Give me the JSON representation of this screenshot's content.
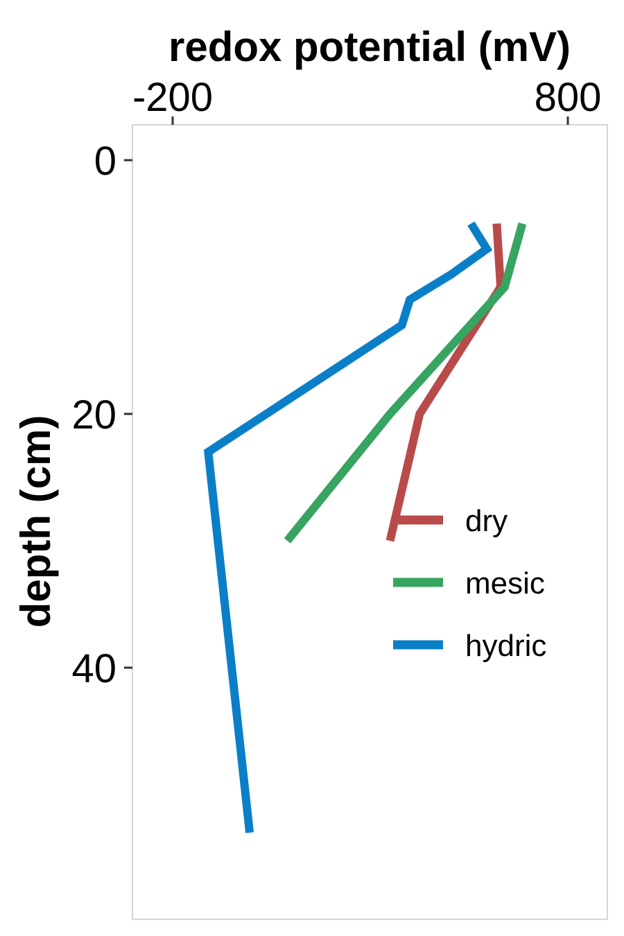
{
  "chart_data": {
    "type": "line",
    "xlabel": "redox potential (mV)",
    "ylabel": "depth (cm)",
    "x_axis_position": "top",
    "y_axis_reversed": true,
    "xlim": [
      -300,
      900
    ],
    "ylim": [
      -3,
      60
    ],
    "x_ticks": [
      -200,
      800
    ],
    "x_tick_labels": [
      "-200",
      "800"
    ],
    "y_ticks": [
      0,
      20,
      40
    ],
    "y_tick_labels": [
      "0",
      "20",
      "40"
    ],
    "grid": false,
    "legend_position": "center-right",
    "series": [
      {
        "name": "dry",
        "color": "#b94a4a",
        "points": [
          [
            620,
            5
          ],
          [
            630,
            10
          ],
          [
            425,
            20
          ],
          [
            350,
            30
          ]
        ]
      },
      {
        "name": "mesic",
        "color": "#37a461",
        "points": [
          [
            685,
            5
          ],
          [
            640,
            10
          ],
          [
            350,
            20
          ],
          [
            90,
            30
          ]
        ]
      },
      {
        "name": "hydric",
        "color": "#0a7fc8",
        "points": [
          [
            555,
            5
          ],
          [
            595,
            7
          ],
          [
            505,
            9
          ],
          [
            400,
            11
          ],
          [
            380,
            13
          ],
          [
            -110,
            23
          ],
          [
            -5,
            53
          ]
        ]
      }
    ]
  }
}
